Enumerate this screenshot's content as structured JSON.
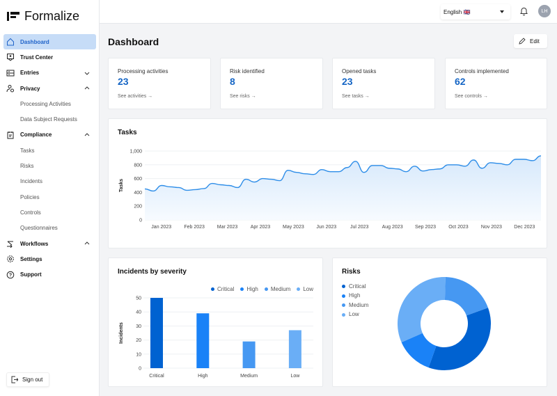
{
  "app": {
    "name": "Formalize"
  },
  "sidebar": {
    "items": [
      {
        "label": "Dashboard",
        "icon": "home-icon",
        "active": true
      },
      {
        "label": "Trust Center",
        "icon": "shield-user-icon"
      },
      {
        "label": "Entries",
        "icon": "list-icon",
        "chevron": "down"
      },
      {
        "label": "Privacy",
        "icon": "user-lock-icon",
        "chevron": "up"
      },
      {
        "label": "Processing Activities",
        "sub": true
      },
      {
        "label": "Data Subject Requests",
        "sub": true
      },
      {
        "label": "Compliance",
        "icon": "clipboard-icon",
        "chevron": "up"
      },
      {
        "label": "Tasks",
        "sub": true
      },
      {
        "label": "Risks",
        "sub": true
      },
      {
        "label": "Incidents",
        "sub": true
      },
      {
        "label": "Policies",
        "sub": true
      },
      {
        "label": "Controls",
        "sub": true
      },
      {
        "label": "Questionnaires",
        "sub": true
      },
      {
        "label": "Workflows",
        "icon": "workflow-icon",
        "chevron": "up"
      },
      {
        "label": "Settings",
        "icon": "gear-icon"
      },
      {
        "label": "Support",
        "icon": "help-icon"
      }
    ],
    "signout": "Sign out"
  },
  "header": {
    "language": "English 🇬🇧",
    "avatar": "LH"
  },
  "main": {
    "title": "Dashboard",
    "edit": "Edit",
    "stats": [
      {
        "label": "Processing activities",
        "value": "23",
        "link": "See activities →"
      },
      {
        "label": "Risk identified",
        "value": "8",
        "link": "See risks →"
      },
      {
        "label": "Opened tasks",
        "value": "23",
        "link": "See tasks →"
      },
      {
        "label": "Controls implemented",
        "value": "62",
        "link": "See controls →"
      }
    ]
  },
  "colors": {
    "accent": "#1666c5",
    "critical": "#0062d1",
    "high": "#1a82f7",
    "medium": "#4698f2",
    "low": "#6aaef6",
    "line": "#2d8de8"
  },
  "chart_data": [
    {
      "type": "area",
      "title": "Tasks",
      "ylabel": "Tasks",
      "ylim": [
        0,
        1000
      ],
      "yticks": [
        "0",
        "200",
        "400",
        "600",
        "800",
        "1,000"
      ],
      "xticks": [
        "Jan 2023",
        "Feb 2023",
        "Mar 2023",
        "Apr 2023",
        "May 2023",
        "Jun 2023",
        "Jul 2023",
        "Aug 2023",
        "Sep 2023",
        "Oct 2023",
        "Nov 2023",
        "Dec 2023"
      ],
      "values": [
        450,
        420,
        500,
        480,
        470,
        430,
        440,
        455,
        530,
        510,
        500,
        470,
        590,
        550,
        600,
        590,
        570,
        720,
        690,
        670,
        660,
        730,
        700,
        700,
        760,
        850,
        690,
        790,
        790,
        750,
        740,
        700,
        780,
        710,
        730,
        740,
        800,
        800,
        780,
        870,
        750,
        830,
        820,
        800,
        880,
        880,
        860,
        930
      ]
    },
    {
      "type": "bar",
      "title": "Incidents by severity",
      "ylabel": "Incidents",
      "ylim": [
        0,
        50
      ],
      "yticks": [
        "0",
        "10",
        "20",
        "30",
        "40",
        "50"
      ],
      "categories": [
        "Critical",
        "High",
        "Medium",
        "Low"
      ],
      "values": [
        50,
        39,
        19,
        27
      ],
      "legend": "top-right"
    },
    {
      "type": "pie",
      "title": "Risks",
      "donut": true,
      "legend": "top-left",
      "categories": [
        "Critical",
        "High",
        "Medium",
        "Low"
      ],
      "values": [
        36,
        13,
        19,
        32
      ]
    }
  ]
}
